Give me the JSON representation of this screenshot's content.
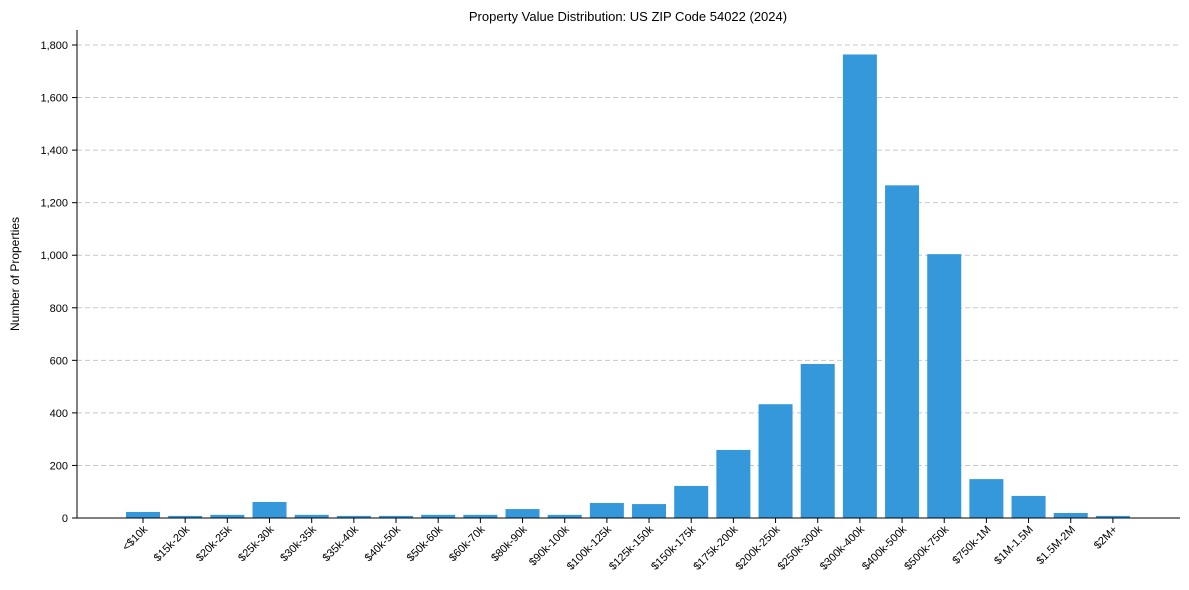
{
  "chart_data": {
    "type": "bar",
    "title": "Property Value Distribution: US ZIP Code 54022 (2024)",
    "xlabel": "",
    "ylabel": "Number of Properties",
    "ylim": [
      0,
      1850
    ],
    "yticks": [
      0,
      200,
      400,
      600,
      800,
      1000,
      1200,
      1400,
      1600,
      1800
    ],
    "ytick_labels": [
      "0",
      "200",
      "400",
      "600",
      "800",
      "1,000",
      "1,200",
      "1,400",
      "1,600",
      "1,800"
    ],
    "grid": "y, dashed",
    "bar_color": "#3498db",
    "categories": [
      "<$10k",
      "$15k-20k",
      "$20k-25k",
      "$25k-30k",
      "$30k-35k",
      "$35k-40k",
      "$40k-50k",
      "$50k-60k",
      "$60k-70k",
      "$80k-90k",
      "$90k-100k",
      "$100k-125k",
      "$125k-150k",
      "$150k-175k",
      "$175k-200k",
      "$200k-250k",
      "$250k-300k",
      "$300k-400k",
      "$400k-500k",
      "$500k-750k",
      "$750k-1M",
      "$1M-1.5M",
      "$1.5M-2M",
      "$2M+"
    ],
    "values": [
      23,
      8,
      12,
      61,
      12,
      8,
      8,
      12,
      12,
      34,
      12,
      57,
      53,
      122,
      259,
      433,
      586,
      1764,
      1266,
      1004,
      148,
      84,
      19,
      8
    ]
  }
}
